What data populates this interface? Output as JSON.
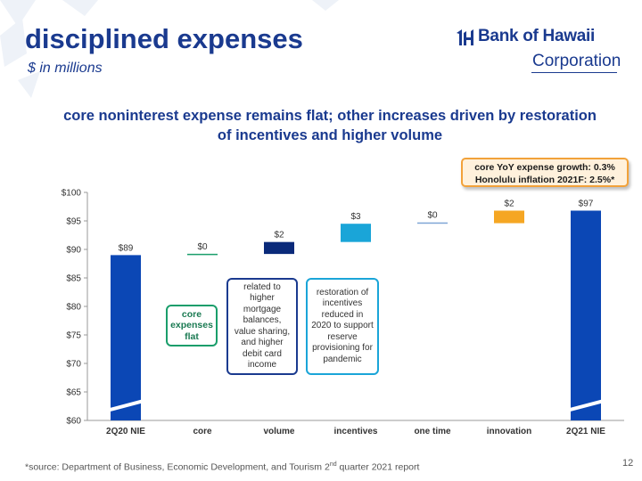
{
  "slide": {
    "title": "disciplined expenses",
    "subtitle": "$ in millions",
    "headline": "core noninterest expense remains flat; other increases driven by restoration of incentives and higher volume",
    "logo": {
      "name": "Bank of Hawaii",
      "corporation": "Corporation"
    },
    "callout": {
      "line1": "core YoY expense growth: 0.3%",
      "line2": "Honolulu inflation 2021F: 2.5%*"
    },
    "annotations": {
      "core": "core expenses flat",
      "volume": "related to higher mortgage balances, value sharing, and higher debit card income",
      "incentives": "restoration of incentives reduced in 2020 to support reserve provisioning for pandemic"
    },
    "footnote": {
      "before": "*source: Department of Business, Economic Development, and Tourism 2",
      "sup": "nd",
      "after": " quarter 2021 report"
    },
    "page_number": "12",
    "colors": {
      "brand": "#1a3a8f",
      "total_bar": "#0b47b5",
      "core": "#1a9e6b",
      "volume": "#0a2a7a",
      "incentives": "#1aa5d8",
      "innovation": "#f5a623",
      "callout_border": "#f2a23a"
    }
  },
  "chart_data": {
    "type": "waterfall",
    "categories": [
      "2Q20 NIE",
      "core",
      "volume",
      "incentives",
      "one time",
      "innovation",
      "2Q21 NIE"
    ],
    "values": [
      89.0,
      0.2,
      2.1,
      3.2,
      0.1,
      2.2,
      96.8
    ],
    "bar_kinds": [
      "total",
      "delta",
      "delta",
      "delta",
      "delta",
      "delta",
      "total"
    ],
    "data_labels": [
      "$89",
      "$0",
      "$2",
      "$3",
      "$0",
      "$2",
      "$97"
    ],
    "ylim": [
      60,
      100
    ],
    "yticks": [
      60,
      65,
      70,
      75,
      80,
      85,
      90,
      95,
      100
    ],
    "ytick_labels": [
      "$60",
      "$65",
      "$70",
      "$75",
      "$80",
      "$85",
      "$90",
      "$95",
      "$100"
    ],
    "axis_break": true,
    "grid": false
  }
}
